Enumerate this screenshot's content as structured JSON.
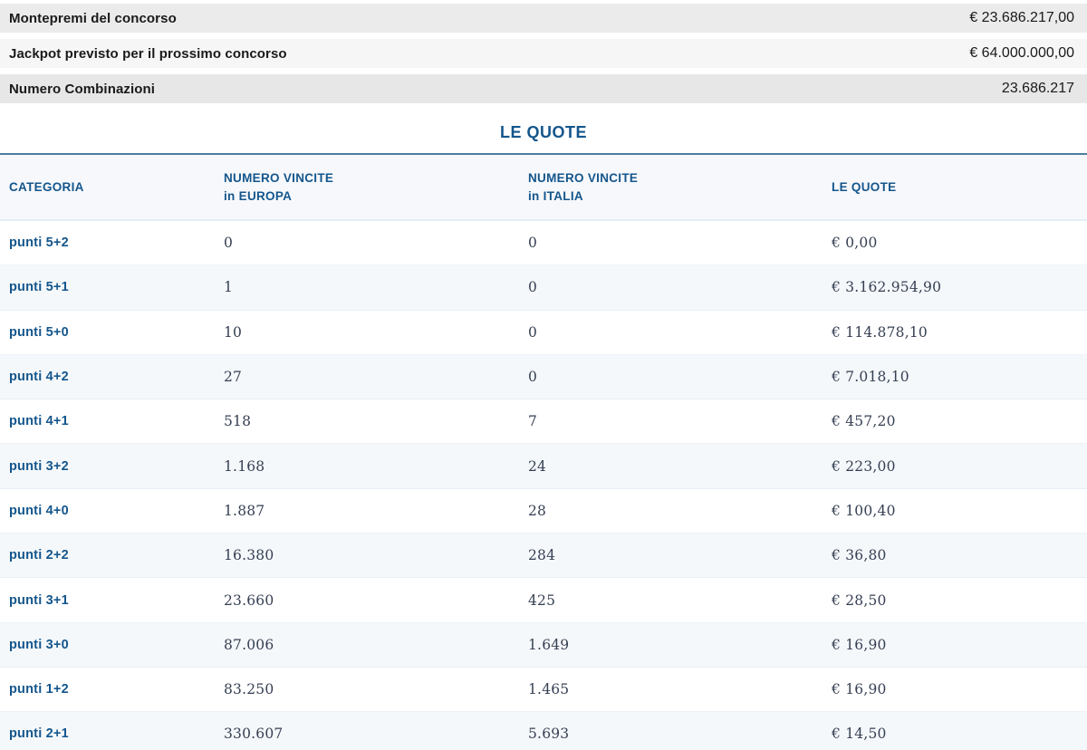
{
  "summary_rows": [
    {
      "label": "Montepremi del concorso",
      "value": "€ 23.686.217,00"
    },
    {
      "label": "Jackpot previsto per il prossimo concorso",
      "value": "€ 64.000.000,00"
    },
    {
      "label": "Numero Combinazioni",
      "value": "23.686.217"
    }
  ],
  "section_title": "LE QUOTE",
  "table": {
    "headers": [
      {
        "lines": [
          "CATEGORIA"
        ]
      },
      {
        "lines": [
          "NUMERO VINCITE",
          "in EUROPA"
        ]
      },
      {
        "lines": [
          "NUMERO VINCITE",
          "in ITALIA"
        ]
      },
      {
        "lines": [
          "LE QUOTE"
        ]
      }
    ],
    "rows": [
      {
        "categoria": "punti 5+2",
        "vincite_europa": "0",
        "vincite_italia": "0",
        "quota": "€ 0,00"
      },
      {
        "categoria": "punti 5+1",
        "vincite_europa": "1",
        "vincite_italia": "0",
        "quota": "€ 3.162.954,90"
      },
      {
        "categoria": "punti 5+0",
        "vincite_europa": "10",
        "vincite_italia": "0",
        "quota": "€ 114.878,10"
      },
      {
        "categoria": "punti 4+2",
        "vincite_europa": "27",
        "vincite_italia": "0",
        "quota": "€ 7.018,10"
      },
      {
        "categoria": "punti 4+1",
        "vincite_europa": "518",
        "vincite_italia": "7",
        "quota": "€ 457,20"
      },
      {
        "categoria": "punti 3+2",
        "vincite_europa": "1.168",
        "vincite_italia": "24",
        "quota": "€ 223,00"
      },
      {
        "categoria": "punti 4+0",
        "vincite_europa": "1.887",
        "vincite_italia": "28",
        "quota": "€ 100,40"
      },
      {
        "categoria": "punti 2+2",
        "vincite_europa": "16.380",
        "vincite_italia": "284",
        "quota": "€ 36,80"
      },
      {
        "categoria": "punti 3+1",
        "vincite_europa": "23.660",
        "vincite_italia": "425",
        "quota": "€ 28,50"
      },
      {
        "categoria": "punti 3+0",
        "vincite_europa": "87.006",
        "vincite_italia": "1.649",
        "quota": "€ 16,90"
      },
      {
        "categoria": "punti 1+2",
        "vincite_europa": "83.250",
        "vincite_italia": "1.465",
        "quota": "€ 16,90"
      },
      {
        "categoria": "punti 2+1",
        "vincite_europa": "330.607",
        "vincite_italia": "5.693",
        "quota": "€ 14,50"
      }
    ]
  },
  "colors": {
    "accent_blue": "#14568c",
    "rule_steel_blue": "#4f7d9e",
    "summary_bar_1": "#ebebeb",
    "summary_bar_2": "#f6f6f6",
    "summary_bar_3": "#e7e7e7",
    "row_alt_bg": "#f5f8fb",
    "header_bg": "#f7f8fc",
    "numeric_text": "#353f52"
  }
}
